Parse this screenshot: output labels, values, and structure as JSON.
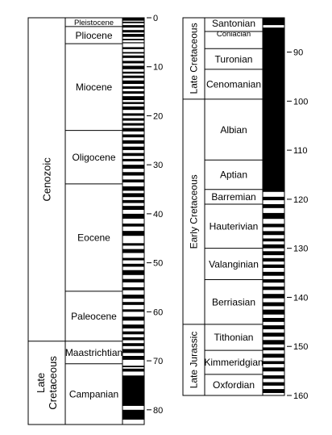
{
  "chart_data": {
    "type": "geomagnetic_polarity_timescale",
    "units": "Ma",
    "panels": [
      {
        "id": "left",
        "range": [
          0,
          83
        ],
        "ticks": [
          0,
          10,
          20,
          30,
          40,
          50,
          60,
          70,
          80
        ],
        "eras": [
          {
            "label": "Cenozoic",
            "start": 0,
            "end": 66
          },
          {
            "label_lines": [
              "Late",
              "Cretaceous"
            ],
            "start": 66,
            "end": 83
          }
        ],
        "stages": [
          {
            "label": "Pleistocene",
            "start": 0,
            "end": 1.8
          },
          {
            "label": "Pliocene",
            "start": 1.8,
            "end": 5.3
          },
          {
            "label": "Miocene",
            "start": 5.3,
            "end": 23.0
          },
          {
            "label": "Oligocene",
            "start": 23.0,
            "end": 33.9
          },
          {
            "label": "Eocene",
            "start": 33.9,
            "end": 55.8
          },
          {
            "label": "Paleocene",
            "start": 55.8,
            "end": 66.0
          },
          {
            "label": "Maastrichtian",
            "start": 66.0,
            "end": 70.6
          },
          {
            "label": "Campanian",
            "start": 70.6,
            "end": 83.0
          }
        ],
        "normal_intervals": [
          [
            0,
            0.6
          ],
          [
            0.8,
            1.1
          ],
          [
            1.5,
            2.0
          ],
          [
            2.5,
            3.0
          ],
          [
            3.3,
            3.9
          ],
          [
            4.3,
            4.6
          ],
          [
            5.0,
            5.2
          ],
          [
            6.0,
            6.4
          ],
          [
            7.0,
            7.3
          ],
          [
            7.7,
            8.2
          ],
          [
            8.8,
            9.3
          ],
          [
            9.8,
            10.5
          ],
          [
            11.0,
            11.4
          ],
          [
            11.8,
            12.3
          ],
          [
            12.8,
            13.5
          ],
          [
            14.0,
            14.5
          ],
          [
            15.0,
            15.5
          ],
          [
            16.0,
            16.8
          ],
          [
            17.2,
            17.6
          ],
          [
            18.1,
            18.8
          ],
          [
            19.5,
            20.0
          ],
          [
            20.5,
            21.0
          ],
          [
            21.5,
            22.0
          ],
          [
            22.5,
            23.2
          ],
          [
            23.8,
            24.4
          ],
          [
            25.0,
            25.7
          ],
          [
            26.3,
            27.0
          ],
          [
            27.6,
            28.2
          ],
          [
            28.8,
            29.3
          ],
          [
            30.0,
            30.8
          ],
          [
            31.5,
            32.2
          ],
          [
            33.0,
            33.6
          ],
          [
            34.4,
            35.3
          ],
          [
            35.8,
            36.6
          ],
          [
            37.2,
            37.8
          ],
          [
            38.4,
            39.2
          ],
          [
            40.0,
            41.0
          ],
          [
            42.0,
            42.6
          ],
          [
            43.5,
            44.5
          ],
          [
            46.0,
            46.5
          ],
          [
            47.2,
            48.0
          ],
          [
            49.0,
            49.5
          ],
          [
            50.2,
            50.8
          ],
          [
            51.5,
            52.5
          ],
          [
            53.3,
            54.0
          ],
          [
            55.0,
            55.6
          ],
          [
            56.5,
            57.3
          ],
          [
            58.0,
            58.6
          ],
          [
            59.5,
            60.0
          ],
          [
            61.0,
            61.8
          ],
          [
            62.6,
            63.4
          ],
          [
            64.0,
            64.6
          ],
          [
            65.2,
            65.8
          ],
          [
            66.4,
            67.0
          ],
          [
            67.6,
            68.4
          ],
          [
            69.0,
            69.8
          ],
          [
            71.0,
            71.3
          ],
          [
            71.6,
            72.2
          ],
          [
            73.0,
            79.2
          ],
          [
            80.0,
            82.0
          ]
        ]
      },
      {
        "id": "right",
        "range": [
          83,
          160
        ],
        "ticks": [
          90,
          100,
          110,
          120,
          130,
          140,
          150,
          160
        ],
        "eras": [
          {
            "label": "Late Cretaceous",
            "start": 83,
            "end": 99.6
          },
          {
            "label": "Early Cretaceous",
            "start": 99.6,
            "end": 145.5
          },
          {
            "label": "Late Jurassic",
            "start": 145.5,
            "end": 160
          }
        ],
        "stages": [
          {
            "label": "Santonian",
            "start": 83,
            "end": 85.8
          },
          {
            "label": "Coniacian",
            "start": 85.8,
            "end": 89.3
          },
          {
            "label": "Turonian",
            "start": 89.3,
            "end": 93.5
          },
          {
            "label": "Cenomanian",
            "start": 93.5,
            "end": 99.6
          },
          {
            "label": "Albian",
            "start": 99.6,
            "end": 112.0
          },
          {
            "label": "Aptian",
            "start": 112.0,
            "end": 118.0
          },
          {
            "label": "Barremian",
            "start": 118.0,
            "end": 121.0
          },
          {
            "label": "Hauterivian",
            "start": 121.0,
            "end": 130.0
          },
          {
            "label": "Valanginian",
            "start": 130.0,
            "end": 136.4
          },
          {
            "label": "Berriasian",
            "start": 136.4,
            "end": 145.5
          },
          {
            "label": "Tithonian",
            "start": 145.5,
            "end": 150.8
          },
          {
            "label": "Kimmeridgian",
            "start": 150.8,
            "end": 155.7
          },
          {
            "label": "Oxfordian",
            "start": 155.7,
            "end": 160.0
          }
        ],
        "normal_intervals": [
          [
            83,
            84.5
          ],
          [
            85.0,
            118.5
          ],
          [
            119.5,
            120.2
          ],
          [
            121.0,
            121.8
          ],
          [
            122.8,
            124.0
          ],
          [
            125.0,
            125.7
          ],
          [
            126.5,
            127.3
          ],
          [
            128.0,
            128.6
          ],
          [
            129.2,
            130.0
          ],
          [
            130.6,
            131.4
          ],
          [
            132.0,
            132.7
          ],
          [
            133.3,
            134.0
          ],
          [
            134.8,
            135.6
          ],
          [
            136.3,
            137.0
          ],
          [
            137.8,
            138.5
          ],
          [
            139.3,
            140.2
          ],
          [
            141.0,
            141.8
          ],
          [
            142.5,
            143.5
          ],
          [
            144.2,
            145.0
          ],
          [
            145.7,
            146.5
          ],
          [
            147.2,
            148.0
          ],
          [
            148.7,
            149.6
          ],
          [
            150.2,
            150.8
          ],
          [
            151.5,
            152.3
          ],
          [
            153.0,
            153.6
          ],
          [
            154.3,
            155.1
          ],
          [
            155.9,
            156.6
          ],
          [
            157.3,
            158.0
          ],
          [
            158.7,
            159.5
          ]
        ]
      }
    ]
  }
}
